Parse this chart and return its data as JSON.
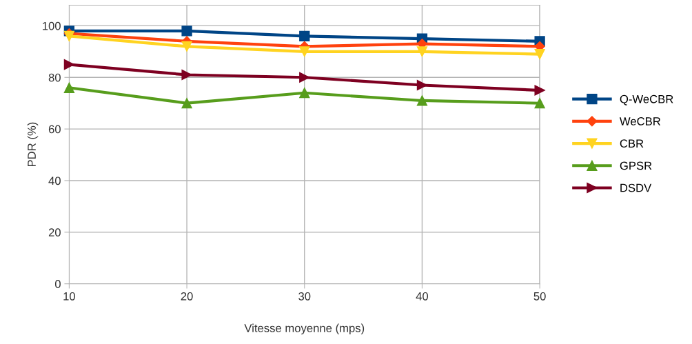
{
  "chart_data": {
    "type": "line",
    "xlabel": "Vitesse moyenne (mps)",
    "ylabel": "PDR (%)",
    "x": [
      10,
      20,
      30,
      40,
      50
    ],
    "series": [
      {
        "name": "Q-WeCBR",
        "color": "#004586",
        "marker": "square",
        "values": [
          98,
          98,
          96,
          95,
          94
        ]
      },
      {
        "name": "WeCBR",
        "color": "#ff420e",
        "marker": "diamond",
        "values": [
          97,
          94,
          92,
          93,
          92
        ]
      },
      {
        "name": "CBR",
        "color": "#ffd320",
        "marker": "triangle_down",
        "values": [
          96,
          92,
          90,
          90,
          89
        ]
      },
      {
        "name": "GPSR",
        "color": "#579d1c",
        "marker": "triangle",
        "values": [
          76,
          70,
          74,
          71,
          70
        ]
      },
      {
        "name": "DSDV",
        "color": "#7e0021",
        "marker": "triangle_right",
        "values": [
          85,
          81,
          80,
          77,
          75
        ]
      }
    ],
    "xlim": [
      10,
      50
    ],
    "xticks": [
      10,
      20,
      30,
      40,
      50
    ],
    "ylim": [
      0,
      108
    ],
    "yticks": [
      0,
      20,
      40,
      60,
      80,
      100
    ],
    "grid": true,
    "legend": "right",
    "line_style": "solid"
  }
}
